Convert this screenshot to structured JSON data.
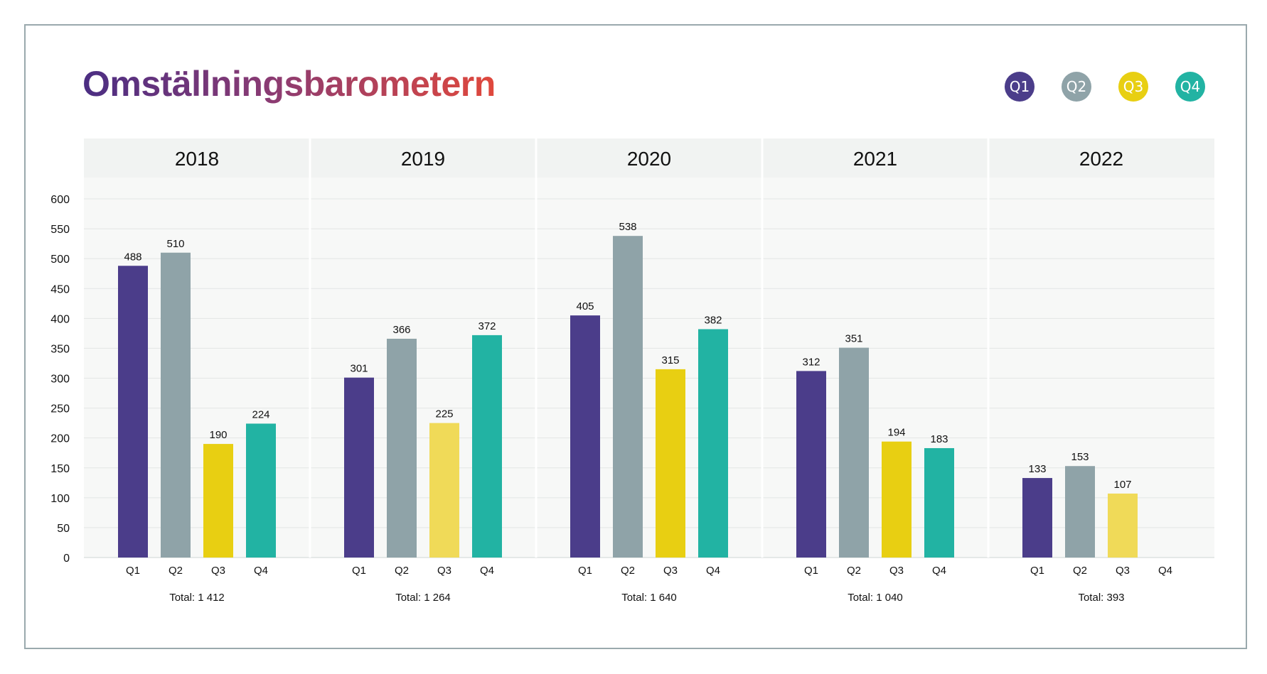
{
  "title": "Omställningsbarometern",
  "legend": [
    {
      "label": "Q1",
      "color": "#4b3d8a"
    },
    {
      "label": "Q2",
      "color": "#8fa3a8"
    },
    {
      "label": "Q3",
      "color": "#e8cf12"
    },
    {
      "label": "Q4",
      "color": "#22b3a3"
    }
  ],
  "chart_data": {
    "type": "bar",
    "ylim": [
      0,
      600
    ],
    "yticks": [
      0,
      50,
      100,
      150,
      200,
      250,
      300,
      350,
      400,
      450,
      500,
      550,
      600
    ],
    "grid": true,
    "groups": [
      {
        "year": "2018",
        "total": "Total: 1 412",
        "bars": [
          {
            "q": "Q1",
            "value": 488,
            "color": "#4b3d8a"
          },
          {
            "q": "Q2",
            "value": 510,
            "color": "#8fa3a8"
          },
          {
            "q": "Q3",
            "value": 190,
            "color": "#e8cf12"
          },
          {
            "q": "Q4",
            "value": 224,
            "color": "#22b3a3"
          }
        ]
      },
      {
        "year": "2019",
        "total": "Total: 1 264",
        "bars": [
          {
            "q": "Q1",
            "value": 301,
            "color": "#4b3d8a"
          },
          {
            "q": "Q2",
            "value": 366,
            "color": "#8fa3a8"
          },
          {
            "q": "Q3",
            "value": 225,
            "color": "#f0da58"
          },
          {
            "q": "Q4",
            "value": 372,
            "color": "#22b3a3"
          }
        ]
      },
      {
        "year": "2020",
        "total": "Total: 1 640",
        "bars": [
          {
            "q": "Q1",
            "value": 405,
            "color": "#4b3d8a"
          },
          {
            "q": "Q2",
            "value": 538,
            "color": "#8fa3a8"
          },
          {
            "q": "Q3",
            "value": 315,
            "color": "#e8cf12"
          },
          {
            "q": "Q4",
            "value": 382,
            "color": "#22b3a3"
          }
        ]
      },
      {
        "year": "2021",
        "total": "Total: 1 040",
        "bars": [
          {
            "q": "Q1",
            "value": 312,
            "color": "#4b3d8a"
          },
          {
            "q": "Q2",
            "value": 351,
            "color": "#8fa3a8"
          },
          {
            "q": "Q3",
            "value": 194,
            "color": "#e8cf12"
          },
          {
            "q": "Q4",
            "value": 183,
            "color": "#22b3a3"
          }
        ]
      },
      {
        "year": "2022",
        "total": "Total: 393",
        "bars": [
          {
            "q": "Q1",
            "value": 133,
            "color": "#4b3d8a"
          },
          {
            "q": "Q2",
            "value": 153,
            "color": "#8fa3a8"
          },
          {
            "q": "Q3",
            "value": 107,
            "color": "#f0da58"
          },
          {
            "q": "Q4",
            "value": null,
            "color": "#22b3a3"
          }
        ]
      }
    ]
  }
}
